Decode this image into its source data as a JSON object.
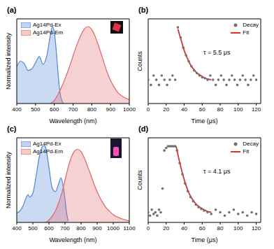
{
  "chart_data": [
    {
      "label": "(a)",
      "type": "area",
      "x_label": "Wavelength (nm)",
      "y_label": "Normalized intensity",
      "xlim": [
        400,
        1000
      ],
      "xticks": [
        400,
        500,
        600,
        700,
        800,
        900,
        1000
      ],
      "ylim": [
        0,
        1.1
      ],
      "tick_labels": "x",
      "legend": "upper left",
      "series": [
        {
          "name": "Ag14Pd-Ex",
          "color": "#4f84d6",
          "x": [
            400,
            420,
            440,
            460,
            480,
            500,
            520,
            540,
            560,
            580,
            590,
            600,
            610,
            620,
            630,
            640,
            650
          ],
          "values": [
            0.48,
            0.55,
            0.52,
            0.43,
            0.45,
            0.53,
            0.61,
            0.51,
            0.62,
            0.9,
            1.0,
            0.93,
            0.7,
            0.4,
            0.15,
            0.04,
            0
          ]
        },
        {
          "name": "Ag14Pd-Em",
          "color": "#e06666",
          "x": [
            580,
            600,
            620,
            640,
            660,
            680,
            700,
            720,
            740,
            760,
            780,
            800,
            820,
            840,
            860,
            880,
            900,
            920,
            940,
            960,
            980,
            1000
          ],
          "values": [
            0,
            0.04,
            0.12,
            0.22,
            0.34,
            0.47,
            0.62,
            0.76,
            0.88,
            0.97,
            1.0,
            0.96,
            0.86,
            0.72,
            0.57,
            0.42,
            0.3,
            0.21,
            0.14,
            0.1,
            0.07,
            0.05
          ]
        }
      ]
    },
    {
      "label": "(b)",
      "type": "scatter",
      "x_label": "Time (μs)",
      "y_label": "Counts",
      "annotation": "τ = 5.5 μs",
      "xlim": [
        0,
        125
      ],
      "xticks": [
        0,
        20,
        40,
        60,
        80,
        100,
        120
      ],
      "ylim": [
        0,
        1
      ],
      "tick_labels": "x",
      "legend": "upper right",
      "series": [
        {
          "name": "Decay",
          "color": "#707070",
          "type": "scatter",
          "marker": "circle",
          "x": [
            0,
            3,
            6,
            9,
            12,
            15,
            18,
            21,
            24,
            27,
            30,
            33,
            36,
            39,
            42,
            45,
            48,
            51,
            54,
            57,
            60,
            63,
            66,
            69,
            72,
            75,
            78,
            81,
            84,
            87,
            90,
            93,
            96,
            99,
            102,
            105,
            108,
            111,
            114,
            117,
            120
          ],
          "values": [
            0.28,
            0.22,
            0.33,
            0.28,
            0.22,
            0.33,
            0.28,
            0.22,
            0.28,
            0.33,
            0.28,
            0.9,
            0.78,
            0.66,
            0.57,
            0.5,
            0.44,
            0.39,
            0.36,
            0.33,
            0.31,
            0.3,
            0.28,
            0.33,
            0.28,
            0.22,
            0.28,
            0.33,
            0.28,
            0.22,
            0.28,
            0.33,
            0.28,
            0.22,
            0.28,
            0.33,
            0.28,
            0.22,
            0.28,
            0.33,
            0.28
          ]
        },
        {
          "name": "Fit",
          "color": "#e03030",
          "type": "line",
          "line_style": "solid",
          "x": [
            33,
            36,
            39,
            42,
            45,
            48,
            51,
            54,
            57,
            60,
            63,
            66,
            70
          ],
          "values": [
            0.88,
            0.77,
            0.66,
            0.57,
            0.5,
            0.44,
            0.4,
            0.36,
            0.34,
            0.32,
            0.3,
            0.29,
            0.28
          ]
        }
      ]
    },
    {
      "label": "(c)",
      "type": "area",
      "x_label": "Wavelength (nm)",
      "y_label": "Normalized intensity",
      "xlim": [
        400,
        1100
      ],
      "xticks": [
        400,
        500,
        600,
        700,
        800,
        900,
        1000,
        1100
      ],
      "ylim": [
        0,
        1.1
      ],
      "tick_labels": "x",
      "legend": "upper left",
      "series": [
        {
          "name": "Ag14Pd-Ex",
          "color": "#4f84d6",
          "x": [
            400,
            420,
            440,
            460,
            470,
            480,
            500,
            520,
            540,
            560,
            570,
            580,
            600,
            620,
            640,
            660,
            675,
            690,
            700,
            710,
            720
          ],
          "values": [
            0.12,
            0.15,
            0.22,
            0.33,
            0.36,
            0.33,
            0.38,
            0.6,
            0.85,
            0.99,
            1.0,
            0.97,
            0.72,
            0.45,
            0.4,
            0.5,
            0.58,
            0.45,
            0.3,
            0.12,
            0.02
          ]
        },
        {
          "name": "Ag14Pd-Em",
          "color": "#e06666",
          "x": [
            580,
            600,
            620,
            640,
            660,
            680,
            700,
            720,
            740,
            760,
            780,
            800,
            820,
            840,
            860,
            880,
            900,
            920,
            940,
            960,
            980,
            1000,
            1050,
            1100
          ],
          "values": [
            0,
            0.03,
            0.08,
            0.15,
            0.25,
            0.38,
            0.55,
            0.72,
            0.85,
            0.93,
            0.95,
            0.92,
            0.84,
            0.73,
            0.62,
            0.5,
            0.4,
            0.31,
            0.24,
            0.18,
            0.14,
            0.1,
            0.05,
            0.02
          ]
        }
      ]
    },
    {
      "label": "(d)",
      "type": "scatter",
      "x_label": "Time (μs)",
      "y_label": "Counts",
      "annotation": "τ = 4.1 μs",
      "xlim": [
        0,
        125
      ],
      "xticks": [
        0,
        20,
        40,
        60,
        80,
        100,
        120
      ],
      "ylim": [
        0,
        1
      ],
      "tick_labels": "x",
      "legend": "upper right",
      "series": [
        {
          "name": "Decay",
          "color": "#707070",
          "type": "scatter",
          "marker": "circle",
          "x": [
            0,
            2,
            4,
            6,
            8,
            10,
            12,
            14,
            16,
            18,
            20,
            22,
            24,
            26,
            28,
            30,
            32,
            35,
            38,
            41,
            44,
            47,
            50,
            53,
            56,
            59,
            62,
            66,
            70,
            75,
            80,
            85,
            90,
            95,
            100,
            105,
            110,
            115,
            120
          ],
          "values": [
            0.12,
            0.08,
            0.15,
            0.1,
            0.12,
            0.08,
            0.15,
            0.12,
            0.4,
            0.85,
            0.88,
            0.9,
            0.9,
            0.9,
            0.9,
            0.9,
            0.85,
            0.7,
            0.57,
            0.46,
            0.37,
            0.3,
            0.25,
            0.21,
            0.18,
            0.16,
            0.14,
            0.12,
            0.1,
            0.15,
            0.12,
            0.08,
            0.12,
            0.15,
            0.1,
            0.12,
            0.08,
            0.12,
            0.1
          ]
        },
        {
          "name": "Fit",
          "color": "#e03030",
          "type": "line",
          "line_style": "solid",
          "x": [
            31,
            35,
            38,
            41,
            44,
            47,
            50,
            53,
            56,
            59,
            62,
            66,
            70
          ],
          "values": [
            0.9,
            0.71,
            0.58,
            0.47,
            0.38,
            0.31,
            0.26,
            0.22,
            0.19,
            0.17,
            0.15,
            0.13,
            0.12
          ]
        }
      ]
    }
  ]
}
